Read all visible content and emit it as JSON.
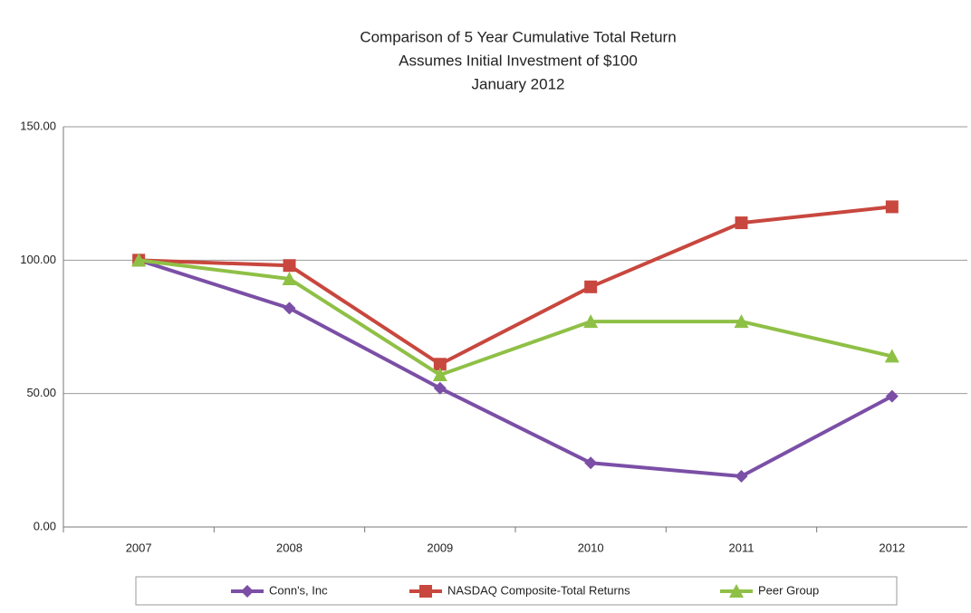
{
  "chart_data": {
    "type": "line",
    "title": [
      "Comparison of 5 Year Cumulative Total Return",
      "Assumes Initial Investment of $100",
      "January 2012"
    ],
    "categories": [
      "2007",
      "2008",
      "2009",
      "2010",
      "2011",
      "2012"
    ],
    "series": [
      {
        "name": "Conn's, Inc",
        "color": "#7b4fa6",
        "marker": "diamond",
        "values": [
          100,
          82,
          52,
          24,
          19,
          49
        ]
      },
      {
        "name": "NASDAQ Composite-Total Returns",
        "color": "#c8473e",
        "marker": "square",
        "values": [
          100,
          98,
          61,
          90,
          114,
          120
        ]
      },
      {
        "name": "Peer Group",
        "color": "#8fc046",
        "marker": "triangle",
        "values": [
          100,
          93,
          57,
          77,
          77,
          64
        ]
      }
    ],
    "ylim": [
      0,
      150
    ],
    "yticks": [
      {
        "value": 0,
        "label": "0.00"
      },
      {
        "value": 50,
        "label": "50.00"
      },
      {
        "value": 100,
        "label": "100.00"
      },
      {
        "value": 150,
        "label": "150.00"
      }
    ],
    "grid": true,
    "legend": "bottom"
  }
}
